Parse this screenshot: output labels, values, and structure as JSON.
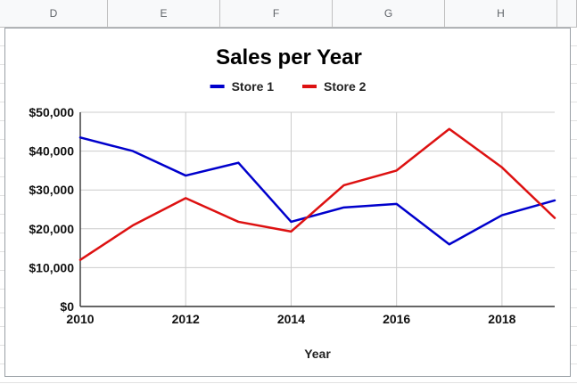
{
  "spreadsheet": {
    "columns": [
      "D",
      "E",
      "F",
      "G",
      "H"
    ]
  },
  "chart_data": {
    "type": "line",
    "title": "Sales per Year",
    "xlabel": "Year",
    "ylabel": "",
    "x": [
      2010,
      2011,
      2012,
      2013,
      2014,
      2015,
      2016,
      2017,
      2018,
      2019
    ],
    "x_ticks": [
      2010,
      2012,
      2014,
      2016,
      2018
    ],
    "x_tick_labels": [
      "2010",
      "2012",
      "2014",
      "2016",
      "2018"
    ],
    "xlim": [
      2010,
      2019
    ],
    "ylim": [
      0,
      50000
    ],
    "y_ticks": [
      0,
      10000,
      20000,
      30000,
      40000,
      50000
    ],
    "y_tick_labels": [
      "$0",
      "$10,000",
      "$20,000",
      "$30,000",
      "$40,000",
      "$50,000"
    ],
    "grid": true,
    "legend_position": "top",
    "series": [
      {
        "name": "Store 1",
        "color": "#0000cc",
        "values": [
          43500,
          40000,
          33700,
          37000,
          21800,
          25500,
          26400,
          16000,
          23500,
          27300
        ]
      },
      {
        "name": "Store 2",
        "color": "#dd1111",
        "values": [
          12000,
          20900,
          27900,
          21800,
          19300,
          31200,
          35000,
          45700,
          35800,
          22800
        ]
      }
    ]
  }
}
